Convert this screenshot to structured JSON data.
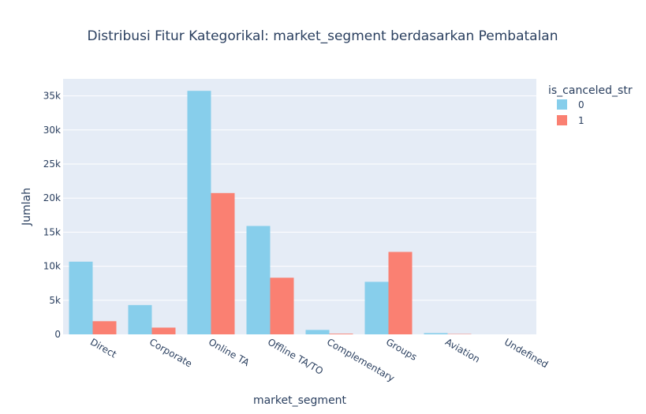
{
  "chart_data": {
    "type": "bar",
    "title": "Distribusi Fitur Kategorikal: market_segment berdasarkan Pembatalan",
    "xlabel": "market_segment",
    "ylabel": "Jumlah",
    "categories": [
      "Direct",
      "Corporate",
      "Online TA",
      "Offline TA/TO",
      "Complementary",
      "Groups",
      "Aviation",
      "Undefined"
    ],
    "series": [
      {
        "name": "0",
        "color": "#87CEEB",
        "values": [
          10670,
          4300,
          35740,
          15910,
          650,
          7710,
          185,
          0
        ]
      },
      {
        "name": "1",
        "color": "#FA8072",
        "values": [
          1930,
          990,
          20740,
          8310,
          100,
          12100,
          50,
          2
        ]
      }
    ],
    "ylim": [
      0,
      37500
    ],
    "yticks": [
      0,
      5000,
      10000,
      15000,
      20000,
      25000,
      30000,
      35000
    ],
    "ytick_labels": [
      "0",
      "5k",
      "10k",
      "15k",
      "20k",
      "25k",
      "30k",
      "35k"
    ],
    "legend": {
      "title": "is_canceled_str",
      "placement": "top-right"
    },
    "grid": true,
    "plot_bg": "#E5ECF6"
  }
}
